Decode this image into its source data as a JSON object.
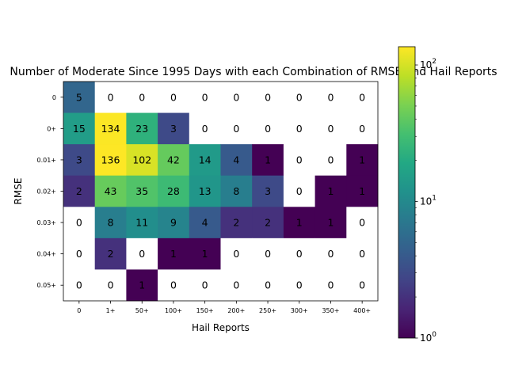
{
  "chart_data": {
    "type": "heatmap",
    "title": "Number of Moderate Since 1995 Days with each Combination of RMSE and Hail Reports",
    "xlabel": "Hail Reports",
    "ylabel": "RMSE",
    "x_categories": [
      "0",
      "1+",
      "50+",
      "100+",
      "150+",
      "200+",
      "250+",
      "300+",
      "350+",
      "400+"
    ],
    "y_categories": [
      "0",
      "0+",
      "0.01+",
      "0.02+",
      "0.03+",
      "0.04+",
      "0.05+"
    ],
    "values": [
      [
        5,
        0,
        0,
        0,
        0,
        0,
        0,
        0,
        0,
        0
      ],
      [
        15,
        134,
        23,
        3,
        0,
        0,
        0,
        0,
        0,
        0
      ],
      [
        3,
        136,
        102,
        42,
        14,
        4,
        1,
        0,
        0,
        1
      ],
      [
        2,
        43,
        35,
        28,
        13,
        8,
        3,
        0,
        1,
        1
      ],
      [
        0,
        8,
        11,
        9,
        4,
        2,
        2,
        1,
        1,
        0
      ],
      [
        0,
        2,
        0,
        1,
        1,
        0,
        0,
        0,
        0,
        0
      ],
      [
        0,
        0,
        1,
        0,
        0,
        0,
        0,
        0,
        0,
        0
      ]
    ],
    "color_scale": "log",
    "colormap": "viridis",
    "zero_color": "#ffffff",
    "colorbar": {
      "range": [
        1,
        136
      ],
      "tick_labels": [
        {
          "value": 1,
          "base": "10",
          "exp": "0"
        },
        {
          "value": 10,
          "base": "10",
          "exp": "1"
        },
        {
          "value": 100,
          "base": "10",
          "exp": "2"
        }
      ]
    }
  }
}
